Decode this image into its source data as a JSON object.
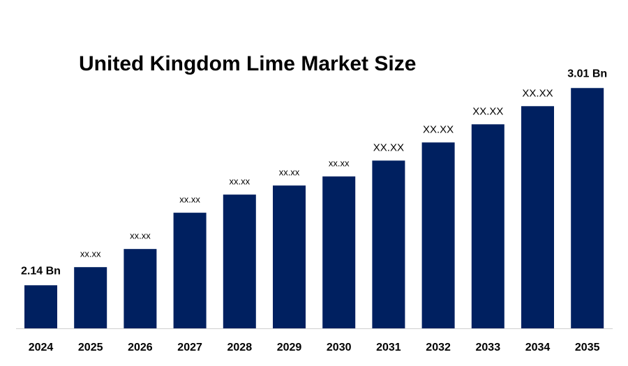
{
  "chart_data": {
    "type": "bar",
    "title": "United Kingdom Lime Market Size",
    "categories": [
      "2024",
      "2025",
      "2026",
      "2027",
      "2028",
      "2029",
      "2030",
      "2031",
      "2032",
      "2033",
      "2034",
      "2035"
    ],
    "values": [
      2.14,
      2.22,
      2.3,
      2.46,
      2.54,
      2.58,
      2.62,
      2.69,
      2.77,
      2.85,
      2.93,
      3.01
    ],
    "value_labels": [
      "2.14 Bn",
      "xx.xx",
      "xx.xx",
      "xx.xx",
      "xx.xx",
      "xx.xx",
      "xx.xx",
      "XX.XX",
      "XX.XX",
      "XX.XX",
      "XX.XX",
      "3.01 Bn"
    ],
    "color": "#002060",
    "ylim": [
      1.95,
      3.1
    ]
  }
}
